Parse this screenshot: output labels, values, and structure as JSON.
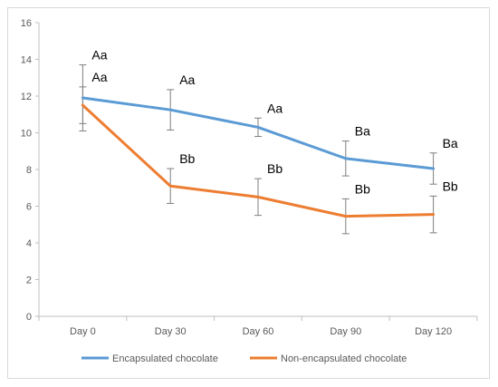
{
  "chart_data": {
    "type": "line",
    "categories": [
      "Day 0",
      "Day 30",
      "Day 60",
      "Day 90",
      "Day 120"
    ],
    "ylim": [
      0,
      16
    ],
    "yticks": [
      0,
      2,
      4,
      6,
      8,
      10,
      12,
      14,
      16
    ],
    "grid": false,
    "legend_position": "bottom",
    "series": [
      {
        "name": "Encapsulated chocolate",
        "color": "#5b9bd5",
        "values": [
          11.9,
          11.25,
          10.3,
          8.6,
          8.05
        ],
        "errors": [
          1.8,
          1.1,
          0.5,
          0.95,
          0.85
        ],
        "labels": [
          "Aa",
          "Aa",
          "Aa",
          "Ba",
          "Ba"
        ]
      },
      {
        "name": "Non-encapsulated chocolate",
        "color": "#ed7d31",
        "values": [
          11.5,
          7.1,
          6.5,
          5.45,
          5.55
        ],
        "errors": [
          1.0,
          0.95,
          1.0,
          0.95,
          1.0
        ],
        "labels": [
          "Aa",
          "Bb",
          "Bb",
          "Bb",
          "Bb"
        ]
      }
    ]
  }
}
